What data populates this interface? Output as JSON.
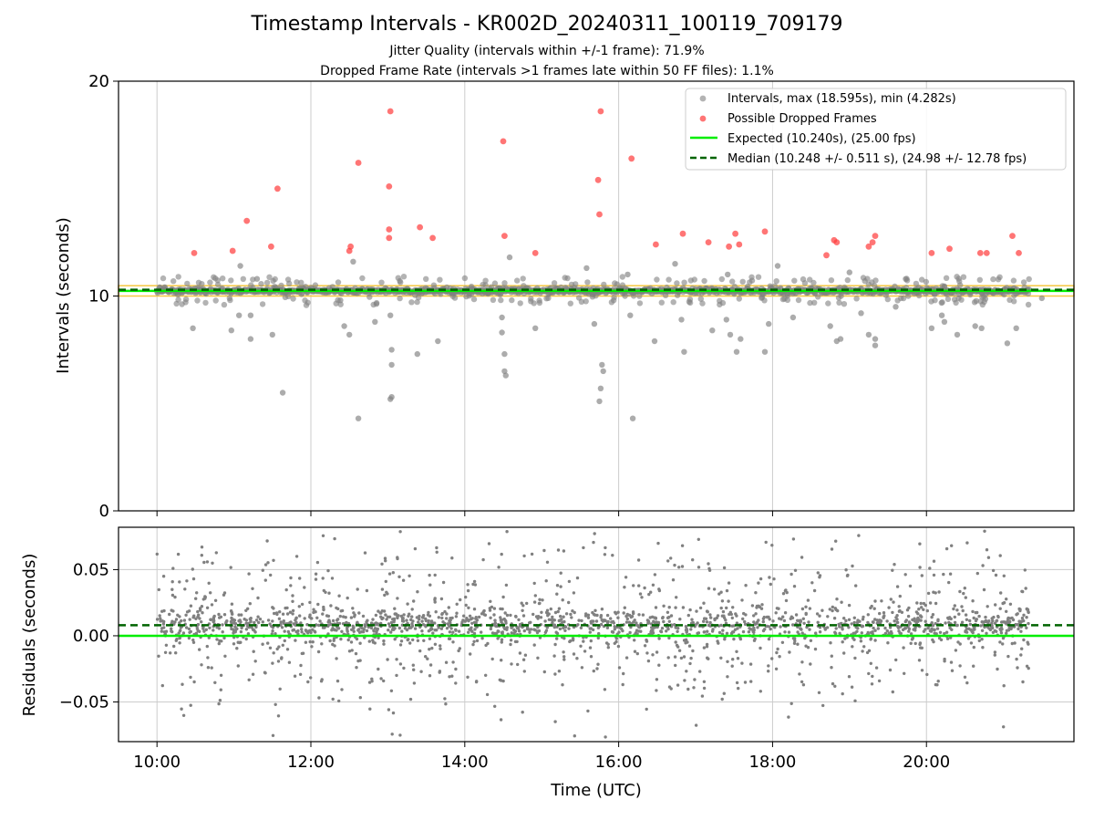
{
  "title": "Timestamp Intervals - KR002D_20240311_100119_709179",
  "subtitle_1": "Jitter Quality (intervals within +/-1 frame): 71.9%",
  "subtitle_2": "Dropped Frame Rate (intervals >1 frames late within 50 FF files): 1.1%",
  "colors": {
    "intervals": "#808080",
    "dropped": "#ff3b3b",
    "expected": "#00ee00",
    "median": "#006400",
    "band": "#f5c842",
    "grid": "#cccccc"
  },
  "chart_data": [
    {
      "type": "scatter",
      "name": "intervals-panel",
      "ylabel": "Intervals (seconds)",
      "xlim": [
        "09:30",
        "21:55"
      ],
      "ylim": [
        0,
        20
      ],
      "yticks": [
        "0",
        "10",
        "20"
      ],
      "xticks": [
        "10:00",
        "12:00",
        "14:00",
        "16:00",
        "18:00",
        "20:00"
      ],
      "expected": 10.24,
      "median": 10.248,
      "band": [
        10.0,
        10.48
      ],
      "legend": {
        "position": "upper-right",
        "entries": [
          "Intervals, max (18.595s), min (4.282s)",
          "Possible Dropped Frames",
          "Expected (10.240s), (25.00 fps)",
          "Median (10.248 +/- 0.511 s), (24.98 +/- 12.78 fps)"
        ]
      },
      "dropped_frames": [
        [
          "10:29",
          12.0
        ],
        [
          "10:59",
          12.1
        ],
        [
          "11:10",
          13.5
        ],
        [
          "11:29",
          12.3
        ],
        [
          "11:34",
          15.0
        ],
        [
          "12:30",
          12.1
        ],
        [
          "12:31",
          12.3
        ],
        [
          "12:37",
          16.2
        ],
        [
          "13:01",
          15.1
        ],
        [
          "13:01",
          13.1
        ],
        [
          "13:01",
          12.7
        ],
        [
          "13:02",
          18.6
        ],
        [
          "13:25",
          13.2
        ],
        [
          "13:35",
          12.7
        ],
        [
          "14:30",
          17.2
        ],
        [
          "14:31",
          12.8
        ],
        [
          "14:55",
          12.0
        ],
        [
          "15:44",
          15.4
        ],
        [
          "15:45",
          13.8
        ],
        [
          "15:46",
          18.6
        ],
        [
          "16:10",
          16.4
        ],
        [
          "16:29",
          12.4
        ],
        [
          "16:50",
          12.9
        ],
        [
          "17:10",
          12.5
        ],
        [
          "17:26",
          12.3
        ],
        [
          "17:31",
          12.9
        ],
        [
          "17:34",
          12.4
        ],
        [
          "17:54",
          13.0
        ],
        [
          "18:42",
          11.9
        ],
        [
          "18:48",
          12.6
        ],
        [
          "18:50",
          12.5
        ],
        [
          "19:15",
          12.3
        ],
        [
          "19:18",
          12.5
        ],
        [
          "19:20",
          12.8
        ],
        [
          "20:04",
          12.0
        ],
        [
          "20:18",
          12.2
        ],
        [
          "20:42",
          12.0
        ],
        [
          "20:47",
          12.0
        ],
        [
          "21:07",
          12.8
        ],
        [
          "21:12",
          12.0
        ]
      ],
      "outlier_intervals": [
        [
          "10:28",
          8.5
        ],
        [
          "10:58",
          8.4
        ],
        [
          "11:04",
          9.1
        ],
        [
          "11:13",
          9.1
        ],
        [
          "11:13",
          8.0
        ],
        [
          "11:05",
          11.4
        ],
        [
          "11:18",
          10.8
        ],
        [
          "11:30",
          8.2
        ],
        [
          "11:38",
          5.5
        ],
        [
          "12:23",
          9.8
        ],
        [
          "12:26",
          8.6
        ],
        [
          "12:30",
          8.2
        ],
        [
          "12:33",
          11.6
        ],
        [
          "12:37",
          4.3
        ],
        [
          "12:50",
          8.8
        ],
        [
          "13:02",
          9.1
        ],
        [
          "13:03",
          7.5
        ],
        [
          "13:03",
          6.8
        ],
        [
          "13:03",
          5.3
        ],
        [
          "13:02",
          5.2
        ],
        [
          "13:23",
          7.3
        ],
        [
          "13:39",
          7.9
        ],
        [
          "14:35",
          11.8
        ],
        [
          "14:29",
          9.0
        ],
        [
          "14:29",
          8.3
        ],
        [
          "14:31",
          7.3
        ],
        [
          "14:31",
          6.5
        ],
        [
          "14:32",
          6.3
        ],
        [
          "14:55",
          8.5
        ],
        [
          "15:35",
          11.3
        ],
        [
          "15:41",
          8.7
        ],
        [
          "15:47",
          6.8
        ],
        [
          "15:48",
          6.5
        ],
        [
          "15:46",
          5.7
        ],
        [
          "15:45",
          5.1
        ],
        [
          "16:07",
          11.0
        ],
        [
          "16:09",
          9.1
        ],
        [
          "16:11",
          4.3
        ],
        [
          "16:28",
          7.9
        ],
        [
          "16:44",
          11.5
        ],
        [
          "16:49",
          8.9
        ],
        [
          "16:51",
          7.4
        ],
        [
          "17:13",
          8.4
        ],
        [
          "17:24",
          8.9
        ],
        [
          "17:25",
          11.0
        ],
        [
          "17:27",
          8.2
        ],
        [
          "17:32",
          7.4
        ],
        [
          "17:35",
          8.0
        ],
        [
          "17:54",
          7.4
        ],
        [
          "17:57",
          8.7
        ],
        [
          "18:04",
          11.4
        ],
        [
          "18:16",
          9.0
        ],
        [
          "18:45",
          8.6
        ],
        [
          "18:50",
          7.9
        ],
        [
          "18:53",
          8.0
        ],
        [
          "19:00",
          11.1
        ],
        [
          "19:09",
          9.2
        ],
        [
          "19:15",
          8.2
        ],
        [
          "19:20",
          8.0
        ],
        [
          "19:20",
          7.7
        ],
        [
          "19:36",
          9.5
        ],
        [
          "20:04",
          8.5
        ],
        [
          "20:12",
          9.1
        ],
        [
          "20:14",
          8.8
        ],
        [
          "20:24",
          8.2
        ],
        [
          "20:38",
          8.6
        ],
        [
          "20:43",
          8.5
        ],
        [
          "21:03",
          7.8
        ],
        [
          "21:10",
          8.5
        ],
        [
          "21:30",
          9.9
        ]
      ]
    },
    {
      "type": "scatter",
      "name": "residuals-panel",
      "xlabel": "Time (UTC)",
      "ylabel": "Residuals (seconds)",
      "xlim": [
        "09:30",
        "21:55"
      ],
      "ylim": [
        -0.08,
        0.082
      ],
      "yticks": [
        "−0.05",
        "0.00",
        "0.05"
      ],
      "xticks": [
        "10:00",
        "12:00",
        "14:00",
        "16:00",
        "18:00",
        "20:00"
      ],
      "expected": 0.0,
      "median": 0.008,
      "time_range": [
        "10:00",
        "21:20"
      ]
    }
  ]
}
